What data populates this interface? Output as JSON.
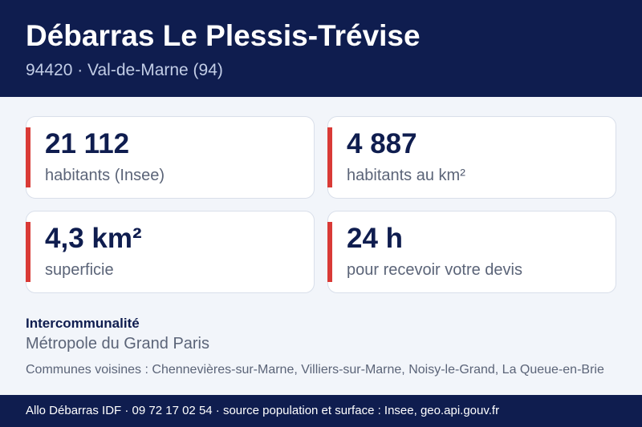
{
  "header": {
    "title": "Débarras Le Plessis-Trévise",
    "subtitle": "94420 · Val-de-Marne (94)"
  },
  "stats": [
    {
      "value": "21 112",
      "label": "habitants (Insee)"
    },
    {
      "value": "4 887",
      "label": "habitants au km²"
    },
    {
      "value": "4,3 km²",
      "label": "superficie"
    },
    {
      "value": "24 h",
      "label": "pour recevoir votre devis"
    }
  ],
  "intercommunalite": {
    "title": "Intercommunalité",
    "value": "Métropole du Grand Paris"
  },
  "neighbors": "Communes voisines : Chennevières-sur-Marne, Villiers-sur-Marne, Noisy-le-Grand, La Queue-en-Brie",
  "footer": {
    "text": "Allo Débarras IDF · 09 72 17 02 54 · source population et surface : Insee, geo.api.gouv.fr"
  },
  "colors": {
    "navy": "#0f1d4f",
    "accent_red": "#d93a36",
    "background": "#f2f5fa",
    "muted_text": "#5b6478"
  }
}
